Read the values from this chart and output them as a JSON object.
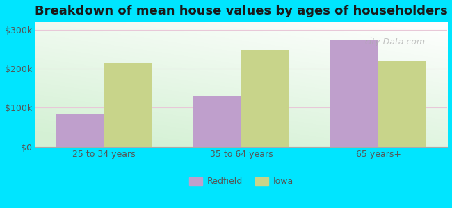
{
  "title": "Breakdown of mean house values by ages of householders",
  "categories": [
    "25 to 34 years",
    "35 to 64 years",
    "65 years+"
  ],
  "redfield_values": [
    85000,
    130000,
    275000
  ],
  "iowa_values": [
    215000,
    248000,
    220000
  ],
  "redfield_color": "#bf9fcc",
  "iowa_color": "#c8d48a",
  "background_outer": "#00e5ff",
  "ylim": [
    0,
    320000
  ],
  "yticks": [
    0,
    100000,
    200000,
    300000
  ],
  "ytick_labels": [
    "$0",
    "$100k",
    "$200k",
    "$300k"
  ],
  "bar_width": 0.35,
  "legend_labels": [
    "Redfield",
    "Iowa"
  ],
  "watermark": "city-Data.com",
  "grid_color": "#e8c8d8",
  "title_fontsize": 13
}
